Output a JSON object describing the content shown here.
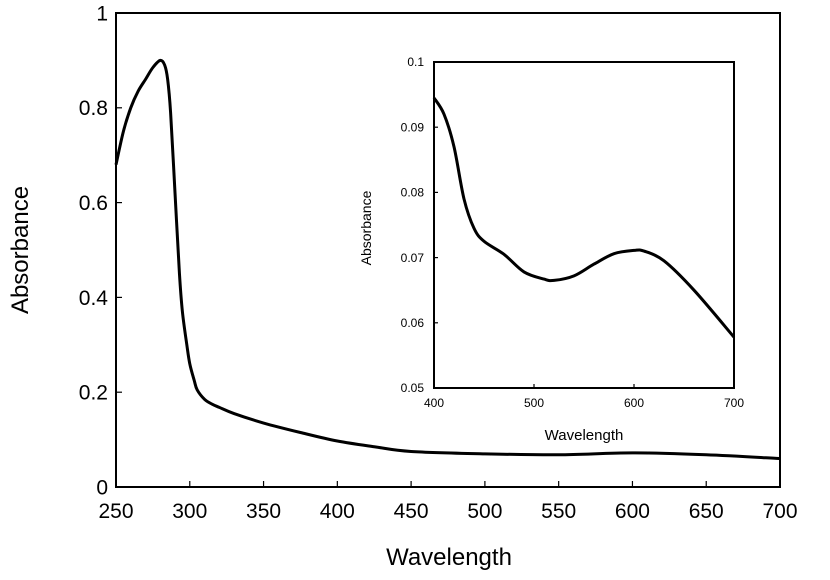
{
  "chart_data": [
    {
      "type": "line",
      "xlabel": "Wavelength",
      "ylabel": "Absorbance",
      "xlim": [
        250,
        700
      ],
      "ylim": [
        0,
        1
      ],
      "xticks": [
        "250",
        "300",
        "350",
        "400",
        "450",
        "500",
        "550",
        "600",
        "650",
        "700"
      ],
      "yticks": [
        "0",
        "0.2",
        "0.4",
        "0.6",
        "0.8",
        "1"
      ],
      "grid": false,
      "series": [
        {
          "x": [
            250,
            255,
            260,
            265,
            270,
            275,
            280,
            283,
            285,
            287,
            290,
            293,
            295,
            298,
            300,
            303,
            305,
            310,
            315,
            320,
            330,
            350,
            375,
            400,
            425,
            450,
            500,
            550,
            600,
            650,
            700
          ],
          "y": [
            0.68,
            0.75,
            0.8,
            0.835,
            0.86,
            0.885,
            0.9,
            0.89,
            0.86,
            0.79,
            0.62,
            0.45,
            0.37,
            0.3,
            0.26,
            0.225,
            0.205,
            0.185,
            0.175,
            0.168,
            0.155,
            0.135,
            0.115,
            0.097,
            0.085,
            0.075,
            0.07,
            0.068,
            0.072,
            0.068,
            0.06
          ]
        }
      ]
    },
    {
      "type": "line",
      "xlabel": "Wavelength",
      "ylabel": "Absorbance",
      "xlim": [
        400,
        700
      ],
      "ylim": [
        0.05,
        0.1
      ],
      "xticks": [
        "400",
        "500",
        "600",
        "700"
      ],
      "yticks": [
        "0.05",
        "0.06",
        "0.07",
        "0.08",
        "0.09",
        "0.1"
      ],
      "grid": false,
      "series": [
        {
          "x": [
            400,
            410,
            420,
            430,
            440,
            450,
            470,
            490,
            510,
            520,
            540,
            560,
            580,
            600,
            610,
            630,
            660,
            700
          ],
          "y": [
            0.0945,
            0.092,
            0.087,
            0.079,
            0.0745,
            0.0725,
            0.0705,
            0.0678,
            0.0667,
            0.0665,
            0.0672,
            0.069,
            0.0706,
            0.0711,
            0.071,
            0.0695,
            0.065,
            0.0578
          ]
        }
      ]
    }
  ]
}
